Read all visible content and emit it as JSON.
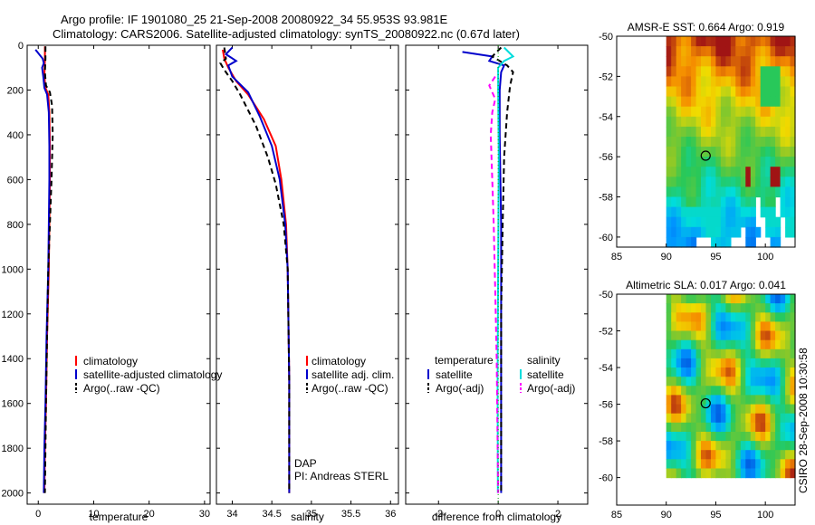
{
  "header": {
    "title_line1": "Argo profile: IF 1901080_25 21-Sep-2008 20080922_34 55.953S 93.981E",
    "title_line2": "Climatology: CARS2006. Satellite-adjusted climatology: synTS_20080922.nc (0.67d later)"
  },
  "side_label": "CSIRO 28-Sep-2008 10:30:58",
  "colors": {
    "climatology": "#ff0000",
    "satellite": "#0000cc",
    "argo": "#000000",
    "salinity": "#00dddd",
    "argo_sal": "#ff00ff"
  },
  "chart_data": [
    {
      "type": "line",
      "id": "temperature",
      "xlabel": "temperature",
      "xlim": [
        -2,
        31
      ],
      "ylim": [
        2050,
        0
      ],
      "x_ticks": [
        "0",
        "10",
        "20",
        "30"
      ],
      "x_tick_values": [
        0,
        10,
        20,
        30
      ],
      "y_ticks": [
        "0",
        "200",
        "400",
        "600",
        "800",
        "1000",
        "1200",
        "1400",
        "1600",
        "1800",
        "2000"
      ],
      "legend": [
        "climatology",
        "satellite-adjusted climatology",
        "Argo(..raw -QC)"
      ],
      "series": [
        {
          "name": "climatology",
          "color": "#ff0000",
          "dash": "",
          "points": [
            [
              1.2,
              5
            ],
            [
              1.2,
              60
            ],
            [
              1.1,
              140
            ],
            [
              1.3,
              190
            ],
            [
              1.8,
              220
            ],
            [
              2.0,
              300
            ],
            [
              2.1,
              450
            ],
            [
              2.1,
              600
            ],
            [
              2.0,
              800
            ],
            [
              1.9,
              1000
            ],
            [
              1.6,
              1300
            ],
            [
              1.4,
              1600
            ],
            [
              1.2,
              1800
            ],
            [
              1.1,
              2000
            ]
          ]
        },
        {
          "name": "satellite-adjusted climatology",
          "color": "#0000cc",
          "dash": "",
          "points": [
            [
              -0.5,
              20
            ],
            [
              0.8,
              60
            ],
            [
              1.0,
              80
            ],
            [
              0.7,
              100
            ],
            [
              0.9,
              140
            ],
            [
              1.1,
              190
            ],
            [
              1.6,
              220
            ],
            [
              1.9,
              300
            ],
            [
              2.0,
              450
            ],
            [
              2.0,
              600
            ],
            [
              1.9,
              800
            ],
            [
              1.8,
              1000
            ],
            [
              1.5,
              1300
            ],
            [
              1.3,
              1600
            ],
            [
              1.1,
              1800
            ],
            [
              1.0,
              2000
            ]
          ]
        },
        {
          "name": "Argo(..raw -QC)",
          "color": "#000000",
          "dash": "6,4",
          "points": [
            [
              1.3,
              5
            ],
            [
              1.3,
              60
            ],
            [
              1.2,
              120
            ],
            [
              1.4,
              180
            ],
            [
              2.1,
              210
            ],
            [
              2.5,
              270
            ],
            [
              2.6,
              400
            ],
            [
              2.4,
              600
            ],
            [
              2.1,
              800
            ],
            [
              1.8,
              1000
            ],
            [
              1.6,
              1300
            ],
            [
              1.4,
              1600
            ],
            [
              1.3,
              1800
            ],
            [
              1.2,
              2000
            ]
          ]
        }
      ]
    },
    {
      "type": "line",
      "id": "salinity",
      "xlabel": "salinity",
      "xlim": [
        33.8,
        36.1
      ],
      "ylim": [
        2050,
        0
      ],
      "x_ticks": [
        "34",
        "34.5",
        "35",
        "35.5",
        "36"
      ],
      "x_tick_values": [
        34,
        34.5,
        35,
        35.5,
        36
      ],
      "legend": [
        "climatology",
        "satellite adj. clim.",
        "Argo(..raw -QC)"
      ],
      "annotation": [
        "DAP",
        "PI: Andreas STERL"
      ],
      "series": [
        {
          "name": "climatology",
          "color": "#ff0000",
          "dash": "",
          "points": [
            [
              33.88,
              20
            ],
            [
              33.9,
              60
            ],
            [
              33.95,
              100
            ],
            [
              34.05,
              160
            ],
            [
              34.2,
              220
            ],
            [
              34.4,
              330
            ],
            [
              34.55,
              450
            ],
            [
              34.62,
              600
            ],
            [
              34.68,
              800
            ],
            [
              34.7,
              1000
            ],
            [
              34.72,
              1500
            ],
            [
              34.72,
              2000
            ]
          ]
        },
        {
          "name": "satellite adj. clim.",
          "color": "#0000cc",
          "dash": "",
          "points": [
            [
              34.0,
              10
            ],
            [
              33.92,
              40
            ],
            [
              34.05,
              70
            ],
            [
              33.95,
              90
            ],
            [
              34.0,
              140
            ],
            [
              34.2,
              210
            ],
            [
              34.35,
              320
            ],
            [
              34.5,
              450
            ],
            [
              34.6,
              600
            ],
            [
              34.67,
              800
            ],
            [
              34.7,
              1000
            ],
            [
              34.72,
              1500
            ],
            [
              34.72,
              2000
            ]
          ]
        },
        {
          "name": "Argo(..raw -QC)",
          "color": "#000000",
          "dash": "6,4",
          "points": [
            [
              33.9,
              10
            ],
            [
              33.92,
              60
            ],
            [
              33.85,
              80
            ],
            [
              33.9,
              110
            ],
            [
              34.0,
              160
            ],
            [
              34.1,
              220
            ],
            [
              34.3,
              360
            ],
            [
              34.45,
              500
            ],
            [
              34.55,
              620
            ],
            [
              34.65,
              800
            ],
            [
              34.7,
              1000
            ],
            [
              34.72,
              1500
            ],
            [
              34.72,
              2000
            ]
          ]
        }
      ]
    },
    {
      "type": "line",
      "id": "difference",
      "xlabel": "difference from climatology",
      "xlim": [
        -3.1,
        3.0
      ],
      "ylim": [
        2050,
        0
      ],
      "x_ticks": [
        "-2",
        "0",
        "2"
      ],
      "x_tick_values": [
        -2,
        0,
        2
      ],
      "legend_left_title": "temperature",
      "legend_left": [
        "satellite",
        "Argo(-adj)"
      ],
      "legend_right_title": "salinity",
      "legend_right": [
        "satellite",
        "Argo(-adj)"
      ],
      "series": [
        {
          "name": "satellite",
          "color": "#0000cc",
          "dash": "",
          "points": [
            [
              -1.2,
              30
            ],
            [
              -0.2,
              50
            ],
            [
              -0.3,
              70
            ],
            [
              0.2,
              90
            ],
            [
              0.1,
              120
            ],
            [
              0.05,
              200
            ],
            [
              0.05,
              400
            ],
            [
              0.1,
              800
            ],
            [
              0.1,
              1200
            ],
            [
              0.1,
              1600
            ],
            [
              0.1,
              2000
            ]
          ]
        },
        {
          "name": "Argo(-adj)",
          "color": "#000000",
          "dash": "6,4",
          "points": [
            [
              0.1,
              10
            ],
            [
              -0.2,
              50
            ],
            [
              0.3,
              90
            ],
            [
              0.5,
              120
            ],
            [
              0.4,
              180
            ],
            [
              0.3,
              300
            ],
            [
              0.2,
              500
            ],
            [
              0.15,
              800
            ],
            [
              0.1,
              1200
            ],
            [
              0.1,
              2000
            ]
          ]
        },
        {
          "name": "satellite",
          "color": "#00dddd",
          "dash": "",
          "points": [
            [
              0.2,
              10
            ],
            [
              0.5,
              50
            ],
            [
              0.2,
              70
            ],
            [
              0.0,
              100
            ],
            [
              0.0,
              200
            ],
            [
              0.02,
              500
            ],
            [
              0.0,
              1000
            ],
            [
              -0.02,
              1500
            ],
            [
              -0.01,
              2000
            ]
          ]
        },
        {
          "name": "Argo(-adj)",
          "color": "#ff00ff",
          "dash": "6,4",
          "points": [
            [
              -0.1,
              140
            ],
            [
              -0.3,
              180
            ],
            [
              -0.1,
              240
            ],
            [
              -0.2,
              300
            ],
            [
              -0.25,
              400
            ],
            [
              -0.2,
              600
            ],
            [
              -0.15,
              800
            ],
            [
              -0.1,
              1100
            ],
            [
              -0.05,
              1400
            ],
            [
              0.0,
              2000
            ]
          ]
        }
      ]
    },
    {
      "type": "heatmap",
      "id": "sst",
      "title": "AMSR-E SST: 0.664  Argo: 0.919",
      "xlim": [
        85,
        103
      ],
      "ylim": [
        -60.5,
        -50
      ],
      "x_ticks": [
        "85",
        "90",
        "95",
        "100"
      ],
      "y_ticks": [
        "-50",
        "-52",
        "-54",
        "-56",
        "-58",
        "-60"
      ],
      "marker": [
        93.98,
        -55.95
      ]
    },
    {
      "type": "heatmap",
      "id": "sla",
      "title": "Altimetric SLA: 0.017  Argo: 0.041",
      "xlim": [
        85,
        103
      ],
      "ylim": [
        -61.5,
        -50
      ],
      "x_ticks": [
        "85",
        "90",
        "95",
        "100"
      ],
      "y_ticks": [
        "-50",
        "-52",
        "-54",
        "-56",
        "-58",
        "-60"
      ],
      "marker": [
        93.98,
        -55.95
      ]
    }
  ]
}
